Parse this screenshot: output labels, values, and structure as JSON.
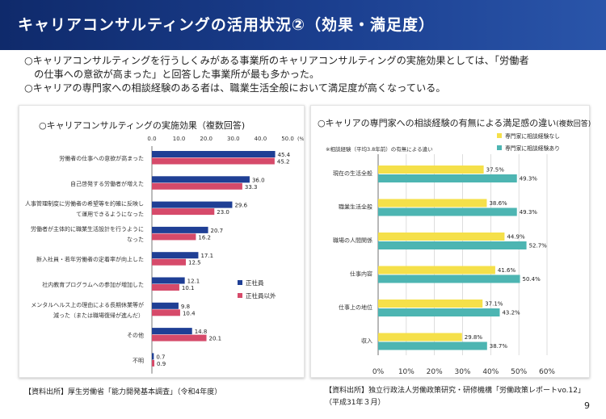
{
  "header": {
    "title": "キャリアコンサルティングの活用状況②（効果・満足度）"
  },
  "bullets": [
    "○キャリアコンサルティングを行うしくみがある事業所のキャリアコンサルティングの実施効果としては、「労働者",
    "　の仕事への意欲が高まった」と回答した事業所が最も多かった。",
    "○キャリアの専門家への相談経験のある者は、職業生活全般において満足度が高くなっている。"
  ],
  "left_title": "○キャリアコンサルティングの実施効果（複数回答)",
  "right_title": "○キャリアの専門家への相談経験の有無による満足感の違い",
  "right_title_note": "(複数回答)",
  "source_left": "【資料出所】厚生労働省「能力開発基本調査」（令和4年度）",
  "source_right_1": "【資料出所】独立行政法人労働政策研究・研修機構「労働政策レポートvo.12」",
  "source_right_2": "（平成31年３月）",
  "page_number": "9",
  "chart_data": [
    {
      "type": "bar",
      "orientation": "horizontal",
      "categories": [
        [
          "労働者の仕事への意欲が高まった"
        ],
        [
          "自己啓発する労働者が増えた"
        ],
        [
          "人事管理制度に労働者の希望等を的確に反映し",
          "て運用できるようになった"
        ],
        [
          "労働者が主体的に職業生活設計を行うように",
          "なった"
        ],
        [
          "新入社員・若年労働者の定着率が向上した"
        ],
        [
          "社内教育プログラムへの参加が増加した"
        ],
        [
          "メンタルヘルス上の理由による長期休業等が",
          "減った（または職場復帰が進んだ）"
        ],
        [
          "その他"
        ],
        [
          "不明"
        ]
      ],
      "series": [
        {
          "name": "正社員",
          "color": "#1f3f95",
          "values": [
            45.4,
            36.0,
            29.6,
            20.7,
            17.1,
            12.1,
            9.8,
            14.8,
            0.7
          ]
        },
        {
          "name": "正社員以外",
          "color": "#d64a6a",
          "values": [
            45.2,
            33.3,
            23.0,
            16.2,
            12.5,
            10.1,
            10.4,
            20.1,
            0.9
          ]
        }
      ],
      "x_ticks": [
        "0.0",
        "10.0",
        "20.0",
        "30.0",
        "40.0",
        "50.0"
      ],
      "x_unit": "(%)",
      "xlim": [
        0,
        50
      ],
      "grid": false,
      "legend_position": "right"
    },
    {
      "type": "bar",
      "orientation": "horizontal",
      "subtitle": "※相談経験（平均3.8年前）の有無による違い",
      "categories": [
        "現在の生活全般",
        "職業生活全般",
        "職場の人間関係",
        "仕事内容",
        "仕事上の地位",
        "収入"
      ],
      "series": [
        {
          "name": "専門家に相談経験なし",
          "color": "#f5e04a",
          "values": [
            37.5,
            38.6,
            44.9,
            41.6,
            37.1,
            29.8
          ],
          "labels": [
            "37.5%",
            "38.6%",
            "44.9%",
            "41.6%",
            "37.1%",
            "29.8%"
          ]
        },
        {
          "name": "専門家に相談経験あり",
          "color": "#4db5b2",
          "values": [
            49.3,
            49.3,
            52.7,
            50.4,
            43.2,
            38.7
          ],
          "labels": [
            "49.3%",
            "49.3%",
            "52.7%",
            "50.4%",
            "43.2%",
            "38.7%"
          ]
        }
      ],
      "x_ticks": [
        "0%",
        "10%",
        "20%",
        "30%",
        "40%",
        "50%",
        "60%"
      ],
      "xlim": [
        0,
        60
      ],
      "grid": true,
      "legend_position": "top-right"
    }
  ]
}
